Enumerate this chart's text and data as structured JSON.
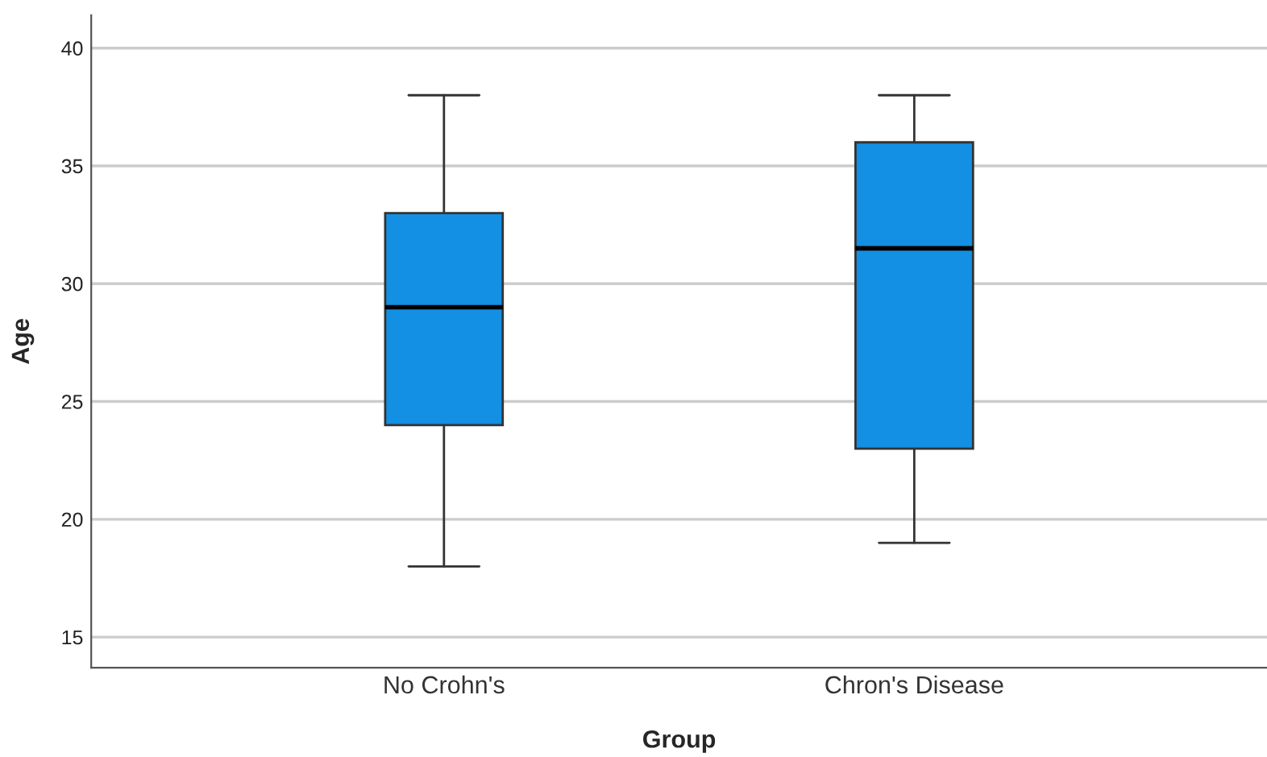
{
  "chart_data": {
    "type": "box",
    "xlabel": "Group",
    "ylabel": "Age",
    "categories": [
      "No Crohn's",
      "Chron's Disease"
    ],
    "series": [
      {
        "color": "#138fe3",
        "boxes": [
          {
            "low": 18,
            "q1": 24,
            "median": 29,
            "q3": 33,
            "high": 38
          },
          {
            "low": 19,
            "q1": 23,
            "median": 31.5,
            "q3": 36,
            "high": 38
          }
        ]
      }
    ],
    "ylim": [
      13.7,
      41.4
    ],
    "yticks": [
      15,
      20,
      25,
      30,
      35,
      40
    ],
    "grid": "y",
    "legend": false
  }
}
